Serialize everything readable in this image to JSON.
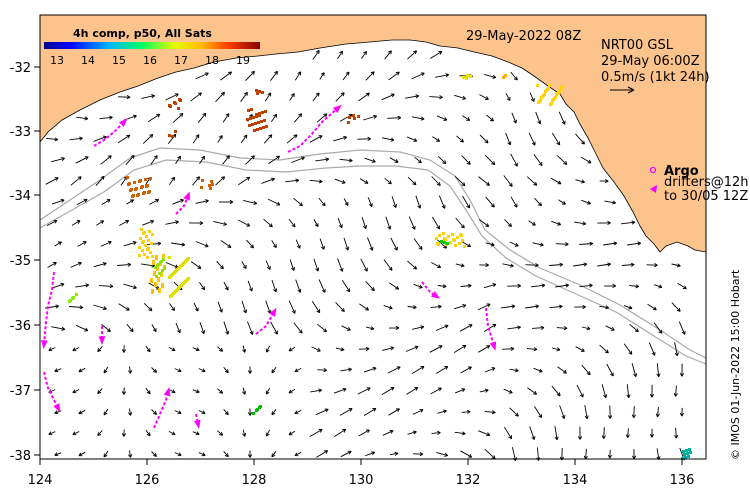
{
  "header": {
    "date_label": "29-May-2022 08Z",
    "product_label": "NRT00 GSL",
    "time_label": "29-May 06:00Z",
    "scale_label": "0.5m/s (1kt 24h)"
  },
  "colorbar": {
    "title": "4h comp, p50, All Sats",
    "ticks": [
      "13",
      "14",
      "15",
      "16",
      "17",
      "18",
      "19"
    ]
  },
  "legend": {
    "argo_label": "Argo",
    "drifters_label": "drifters@12h",
    "drifters_range": "to 30/05 12Z"
  },
  "credit": "© IMOS 01-Jun-2022 15:00 Hobart",
  "axes": {
    "x_ticks": [
      "124",
      "126",
      "128",
      "130",
      "132",
      "134",
      "136"
    ],
    "y_ticks": [
      "-32",
      "-33",
      "-34",
      "-35",
      "-36",
      "-37",
      "-38"
    ],
    "lon_range": [
      124,
      136.6
    ],
    "lat_range": [
      -38.1,
      -31.2
    ]
  },
  "colors": {
    "land": "#fcc48c",
    "argo": "#ff00ff",
    "drifter": "#ff00ff",
    "bathymetry": "#aaaaaa"
  }
}
